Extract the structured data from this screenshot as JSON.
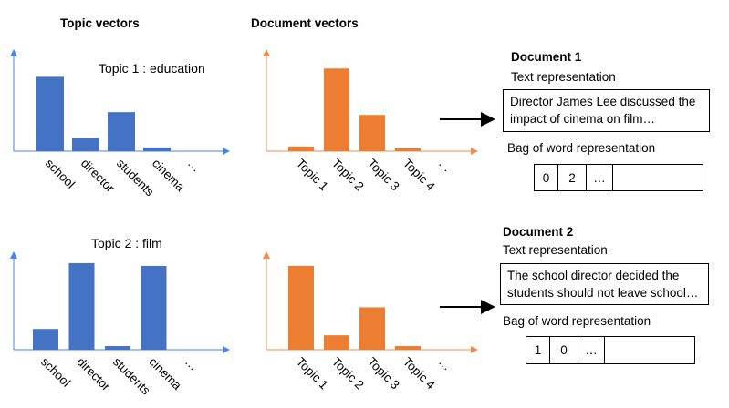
{
  "headers": {
    "topic_vectors": "Topic vectors",
    "document_vectors": "Document vectors"
  },
  "colors": {
    "topic": "#4472c4",
    "document": "#ed7d31",
    "axis_topic": "#4a86e8",
    "axis_doc": "#f08c4a"
  },
  "chart_data": [
    {
      "type": "bar",
      "title": "Topic 1 : education",
      "categories": [
        "school",
        "director",
        "students",
        "cinema",
        "…"
      ],
      "values": [
        0.8,
        0.14,
        0.42,
        0.04,
        null
      ],
      "ylim": [
        0,
        1
      ]
    },
    {
      "type": "bar",
      "title": "",
      "categories": [
        "Topic 1",
        "Topic 2",
        "Topic 3",
        "Topic 4",
        "…"
      ],
      "values": [
        0.05,
        0.89,
        0.39,
        0.03,
        null
      ],
      "ylim": [
        0,
        1
      ]
    },
    {
      "type": "bar",
      "title": "Topic 2 : film",
      "categories": [
        "school",
        "director",
        "students",
        "cinema",
        "…"
      ],
      "values": [
        0.23,
        0.96,
        0.04,
        0.93,
        null
      ],
      "ylim": [
        0,
        1
      ]
    },
    {
      "type": "bar",
      "title": "",
      "categories": [
        "Topic 1",
        "Topic 2",
        "Topic 3",
        "Topic 4",
        "…"
      ],
      "values": [
        0.93,
        0.16,
        0.47,
        0.04,
        null
      ],
      "ylim": [
        0,
        1
      ]
    }
  ],
  "documents": [
    {
      "title": "Document 1",
      "text_label": "Text representation",
      "text": "Director James Lee discussed the impact of cinema on film…",
      "bow_label": "Bag of word representation",
      "bow_cells": [
        "0",
        "2",
        "…",
        ""
      ]
    },
    {
      "title": "Document 2",
      "text_label": "Text representation",
      "text": "The school director decided the students should not leave school…",
      "bow_label": "Bag of word representation",
      "bow_cells": [
        "1",
        "0",
        "…",
        ""
      ]
    }
  ]
}
